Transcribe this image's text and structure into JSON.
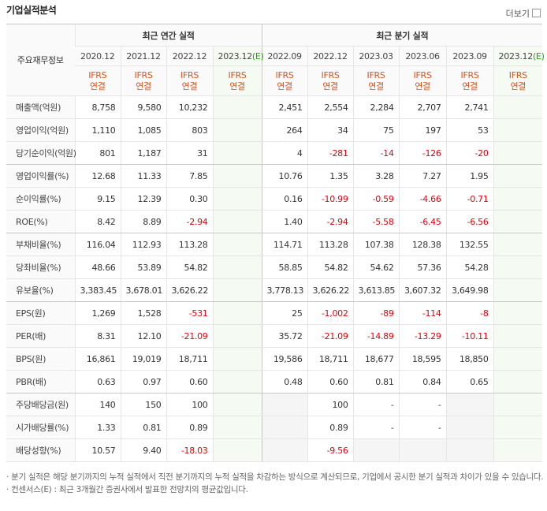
{
  "header": {
    "title": "기업실적분석",
    "more": "더보기"
  },
  "table": {
    "corner": "주요재무정보",
    "groups": [
      "최근 연간 실적",
      "최근 분기 실적"
    ],
    "periods": [
      {
        "date": "2020.12"
      },
      {
        "date": "2021.12"
      },
      {
        "date": "2022.12"
      },
      {
        "date": "2023.12",
        "estimate": "(E)"
      },
      {
        "date": "2022.09"
      },
      {
        "date": "2022.12"
      },
      {
        "date": "2023.03"
      },
      {
        "date": "2023.06"
      },
      {
        "date": "2023.09"
      },
      {
        "date": "2023.12",
        "estimate": "(E)"
      }
    ],
    "basis": [
      "IFRS",
      "연결"
    ],
    "rows": [
      {
        "label": "매출액(억원)",
        "cells": [
          "8,758",
          "9,580",
          "10,232",
          null,
          "2,451",
          "2,554",
          "2,284",
          "2,707",
          "2,741",
          null
        ]
      },
      {
        "label": "영업이익(억원)",
        "cells": [
          "1,110",
          "1,085",
          "803",
          null,
          "264",
          "34",
          "75",
          "197",
          "53",
          null
        ]
      },
      {
        "label": "당기순이익(억원)",
        "cells": [
          "801",
          "1,187",
          "31",
          null,
          "4",
          "-281",
          "-14",
          "-126",
          "-20",
          null
        ]
      },
      {
        "label": "영업이익률(%)",
        "cells": [
          "12.68",
          "11.33",
          "7.85",
          null,
          "10.76",
          "1.35",
          "3.28",
          "7.27",
          "1.95",
          null
        ]
      },
      {
        "label": "순이익률(%)",
        "cells": [
          "9.15",
          "12.39",
          "0.30",
          null,
          "0.16",
          "-10.99",
          "-0.59",
          "-4.66",
          "-0.71",
          null
        ]
      },
      {
        "label": "ROE(%)",
        "cells": [
          "8.42",
          "8.89",
          "-2.94",
          null,
          "1.40",
          "-2.94",
          "-5.58",
          "-6.45",
          "-6.56",
          null
        ]
      },
      {
        "label": "부채비율(%)",
        "cells": [
          "116.04",
          "112.93",
          "113.28",
          null,
          "114.71",
          "113.28",
          "107.38",
          "128.38",
          "132.55",
          null
        ]
      },
      {
        "label": "당좌비율(%)",
        "cells": [
          "48.66",
          "53.89",
          "54.82",
          null,
          "58.85",
          "54.82",
          "54.62",
          "57.36",
          "54.28",
          null
        ]
      },
      {
        "label": "유보율(%)",
        "cells": [
          "3,383.45",
          "3,678.01",
          "3,626.22",
          null,
          "3,778.13",
          "3,626.22",
          "3,613.85",
          "3,607.32",
          "3,649.98",
          null
        ]
      },
      {
        "label": "EPS(원)",
        "cells": [
          "1,269",
          "1,528",
          "-531",
          null,
          "25",
          "-1,002",
          "-89",
          "-114",
          "-8",
          null
        ]
      },
      {
        "label": "PER(배)",
        "cells": [
          "8.31",
          "12.10",
          "-21.09",
          null,
          "35.72",
          "-21.09",
          "-14.89",
          "-13.29",
          "-10.11",
          null
        ]
      },
      {
        "label": "BPS(원)",
        "cells": [
          "16,861",
          "19,019",
          "18,711",
          null,
          "19,586",
          "18,711",
          "18,677",
          "18,595",
          "18,850",
          null
        ]
      },
      {
        "label": "PBR(배)",
        "cells": [
          "0.63",
          "0.97",
          "0.60",
          null,
          "0.48",
          "0.60",
          "0.81",
          "0.84",
          "0.65",
          null
        ]
      },
      {
        "label": "주당배당금(원)",
        "cells": [
          "140",
          "150",
          "100",
          null,
          null,
          "100",
          "-",
          "-",
          null,
          null
        ]
      },
      {
        "label": "시가배당률(%)",
        "cells": [
          "1.33",
          "0.81",
          "0.89",
          null,
          null,
          "0.89",
          "-",
          "-",
          null,
          null
        ]
      },
      {
        "label": "배당성향(%)",
        "cells": [
          "10.57",
          "9.40",
          "-18.03",
          null,
          null,
          "-9.56",
          null,
          null,
          null,
          null
        ]
      }
    ]
  },
  "notes": [
    "분기 실적은 해당 분기까지의 누적 실적에서 직전 분기까지의 누적 실적을 차감하는 방식으로 계산되므로, 기업에서 공시한 분기 실적과 차이가 있을 수 있습니다.",
    "컨센서스(E) : 최근 3개월간 증권사에서 발표한 전망치의 평균값입니다."
  ]
}
